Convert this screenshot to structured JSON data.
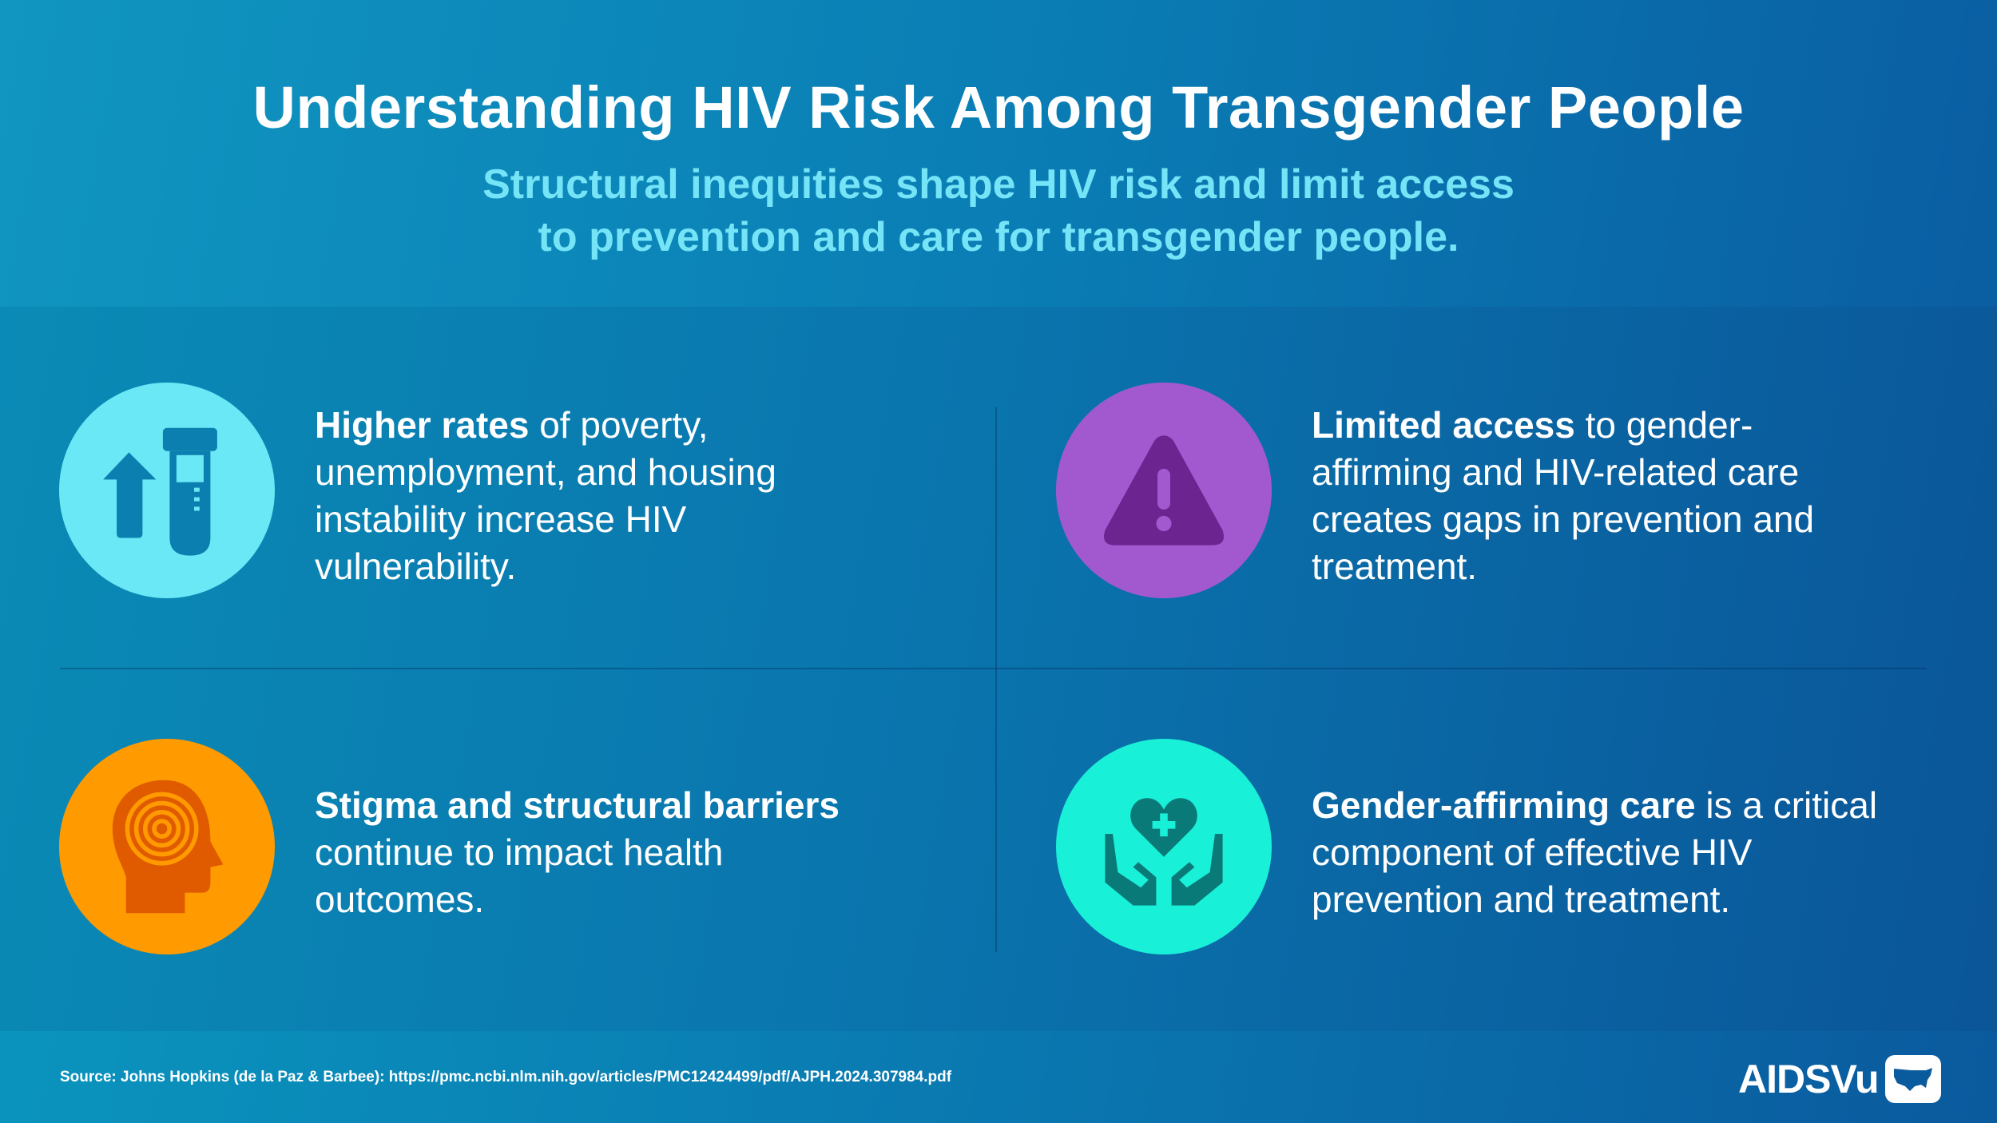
{
  "header": {
    "title": "Understanding HIV Risk Among Transgender People",
    "subtitle_line1": "Structural inequities shape HIV risk and limit access",
    "subtitle_line2": "to prevention and care for transgender people."
  },
  "cards": [
    {
      "bold": "Higher rates",
      "rest": " of poverty, unemployment, and housing instability increase HIV vulnerability.",
      "icon": "arrow-up-test-tube-icon",
      "color": "#6be8f5"
    },
    {
      "bold": "Limited access",
      "rest": " to gender-affirming and HIV-related care creates gaps in prevention and treatment.",
      "icon": "warning-icon",
      "color": "#a259d0"
    },
    {
      "bold": "Stigma and structural barriers",
      "rest": " continue to impact health outcomes.",
      "icon": "head-spiral-icon",
      "color": "#ff9a00"
    },
    {
      "bold": "Gender-affirming care",
      "rest": " is a critical component of effective HIV prevention and treatment.",
      "icon": "hands-heart-icon",
      "color": "#19f0d8"
    }
  ],
  "footer": {
    "source": "Source: Johns Hopkins (de la Paz & Barbee): https://pmc.ncbi.nlm.nih.gov/articles/PMC12424499/pdf/AJPH.2024.307984.pdf",
    "logo": "AIDSVu"
  }
}
